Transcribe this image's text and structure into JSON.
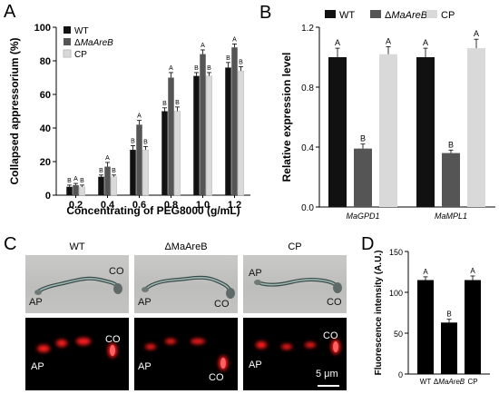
{
  "panel_letters": {
    "a": "A",
    "b": "B",
    "c": "C",
    "d": "D"
  },
  "colors": {
    "wt": "#111111",
    "mutant": "#555555",
    "cp": "#d9d9d9",
    "signal": "#ff1a1a"
  },
  "chart_data": [
    {
      "panel": "A",
      "type": "bar",
      "xlabel": "Concentrating of PEG8000 (g/mL)",
      "ylabel": "Collapsed appressorium (%)",
      "ylim": [
        0,
        100
      ],
      "yticks": [
        "0",
        "20",
        "40",
        "60",
        "80",
        "100"
      ],
      "categories": [
        "0.2",
        "0.4",
        "0.6",
        "0.8",
        "1.0",
        "1.2"
      ],
      "legend": [
        "WT",
        "ΔMaAreB",
        "CP"
      ],
      "legend_position": "top-left",
      "series": [
        {
          "name": "WT",
          "values": [
            5,
            11,
            27,
            50,
            71,
            76
          ],
          "errors": [
            1,
            1,
            2.5,
            2,
            2,
            3
          ],
          "letters": [
            "B",
            "B",
            "B",
            "B",
            "B",
            "B"
          ]
        },
        {
          "name": "ΔMaAreB",
          "values": [
            6,
            17,
            42,
            70,
            84,
            88
          ],
          "errors": [
            1,
            2.5,
            2.5,
            3,
            2.5,
            2
          ],
          "letters": [
            "A",
            "A",
            "A",
            "A",
            "A",
            "A"
          ]
        },
        {
          "name": "CP",
          "values": [
            5,
            11,
            27,
            50,
            71,
            74
          ],
          "errors": [
            1,
            1,
            2,
            2.5,
            2,
            2.5
          ],
          "letters": [
            "B",
            "B",
            "B",
            "B",
            "B",
            "B"
          ]
        }
      ]
    },
    {
      "panel": "B",
      "type": "bar",
      "ylabel": "Relative expression  level",
      "ylim": [
        0,
        1.2
      ],
      "yticks": [
        "0.0",
        "0.4",
        "0.8",
        "1.2"
      ],
      "categories": [
        "MaGPD1",
        "MaMPL1"
      ],
      "legend": [
        "WT",
        "ΔMaAreB",
        "CP"
      ],
      "legend_position": "top",
      "series": [
        {
          "name": "WT",
          "values": [
            1.0,
            1.0
          ],
          "errors": [
            0.06,
            0.06
          ],
          "letters": [
            "A",
            "A"
          ]
        },
        {
          "name": "ΔMaAreB",
          "values": [
            0.39,
            0.36
          ],
          "errors": [
            0.03,
            0.02
          ],
          "letters": [
            "B",
            "B"
          ]
        },
        {
          "name": "CP",
          "values": [
            1.02,
            1.06
          ],
          "errors": [
            0.05,
            0.06
          ],
          "letters": [
            "A",
            "A"
          ]
        }
      ]
    },
    {
      "panel": "D",
      "type": "bar",
      "ylabel": "Fluorescence intensity (A.U.)",
      "ylim": [
        0,
        150
      ],
      "yticks": [
        "0",
        "50",
        "100",
        "150"
      ],
      "categories": [
        "WT",
        "ΔMaAreB",
        "CP"
      ],
      "values": [
        115,
        63,
        115
      ],
      "errors": [
        4,
        4,
        5
      ],
      "letters": [
        "A",
        "B",
        "A"
      ]
    }
  ],
  "micrographs": {
    "columns": [
      "WT",
      "ΔMaAreB",
      "CP"
    ],
    "labels": {
      "ap": "AP",
      "co": "CO"
    },
    "scale_bar": "5 μm"
  }
}
